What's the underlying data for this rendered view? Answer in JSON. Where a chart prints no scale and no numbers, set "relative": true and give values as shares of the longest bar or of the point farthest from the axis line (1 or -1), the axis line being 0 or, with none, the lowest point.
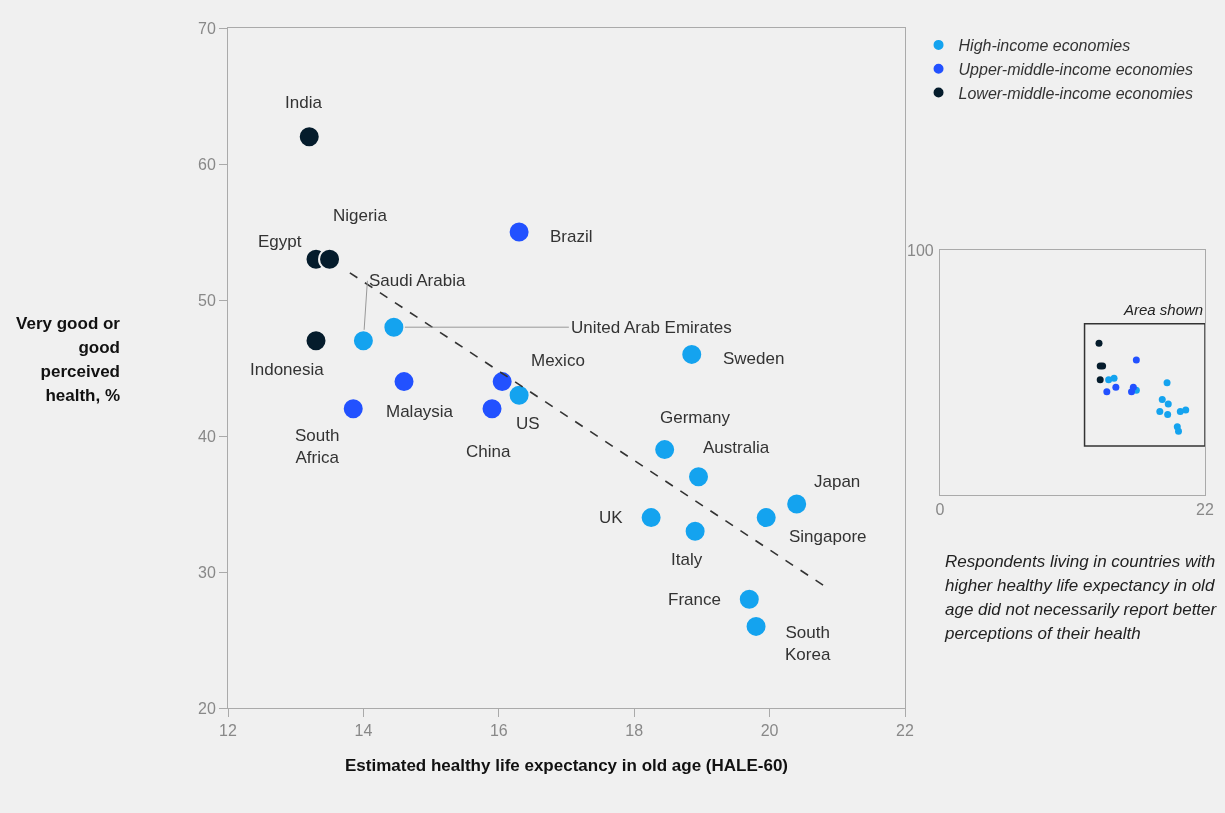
{
  "chart_data": [
    {
      "type": "scatter",
      "xlabel": "Estimated healthy life expectancy in old age (HALE-60)",
      "ylabel": "Very good or good perceived health, %",
      "xlim": [
        12,
        22
      ],
      "ylim": [
        20,
        70
      ],
      "xticks": [
        12,
        14,
        16,
        18,
        20,
        22
      ],
      "yticks": [
        20,
        30,
        40,
        50,
        60,
        70
      ],
      "legend": "top right",
      "series": [
        {
          "name": "High-income economies",
          "color": "#14a3ef",
          "marker": "circle",
          "x": [
            14.0,
            14.45,
            16.3,
            18.85,
            18.45,
            18.95,
            18.25,
            18.9,
            19.95,
            20.4,
            19.7,
            19.8
          ],
          "values": [
            47,
            48,
            43,
            46,
            39,
            37,
            34,
            33,
            34,
            35,
            28,
            26
          ]
        },
        {
          "name": "Upper-middle-income economies",
          "color": "#2251ff",
          "marker": "circle",
          "x": [
            14.6,
            13.85,
            16.3,
            16.05,
            15.9
          ],
          "values": [
            44,
            42,
            55,
            44,
            42
          ]
        },
        {
          "name": "Lower-middle-income economies",
          "color": "#051c2c",
          "marker": "circle",
          "x": [
            13.2,
            13.3,
            13.5,
            13.3
          ],
          "values": [
            62,
            53,
            53,
            47
          ]
        },
        {
          "type": "line",
          "color": "#333333",
          "line_style": "dashed",
          "marker": "none",
          "x": [
            13.8,
            20.8
          ],
          "values": [
            52,
            29
          ]
        }
      ],
      "annotations": [
        {
          "text": "India",
          "x": 13.2,
          "y": 62
        },
        {
          "text": "Egypt",
          "x": 13.3,
          "y": 53
        },
        {
          "text": "Nigeria",
          "x": 13.5,
          "y": 53
        },
        {
          "text": "Saudi Arabia",
          "x": 14.0,
          "y": 47
        },
        {
          "text": "Indonesia",
          "x": 13.3,
          "y": 47
        },
        {
          "text": "United Arab Emirates",
          "x": 14.45,
          "y": 48
        },
        {
          "text": "Malaysia",
          "x": 14.6,
          "y": 44
        },
        {
          "text": "South Africa",
          "x": 13.85,
          "y": 42
        },
        {
          "text": "Brazil",
          "x": 16.3,
          "y": 55
        },
        {
          "text": "Mexico",
          "x": 16.05,
          "y": 44
        },
        {
          "text": "US",
          "x": 16.3,
          "y": 43
        },
        {
          "text": "China",
          "x": 15.9,
          "y": 42
        },
        {
          "text": "Sweden",
          "x": 18.85,
          "y": 46
        },
        {
          "text": "Germany",
          "x": 18.45,
          "y": 39
        },
        {
          "text": "Australia",
          "x": 18.95,
          "y": 37
        },
        {
          "text": "UK",
          "x": 18.25,
          "y": 34
        },
        {
          "text": "Italy",
          "x": 18.9,
          "y": 33
        },
        {
          "text": "Singapore",
          "x": 19.95,
          "y": 34
        },
        {
          "text": "Japan",
          "x": 20.4,
          "y": 35
        },
        {
          "text": "France",
          "x": 19.7,
          "y": 28
        },
        {
          "text": "South Korea",
          "x": 19.8,
          "y": 26
        }
      ]
    },
    {
      "type": "scatter",
      "relative": true,
      "xlim": [
        0,
        22
      ],
      "xticks": [
        0,
        22
      ],
      "marker": "circle",
      "series": [
        {
          "color": "#14a3ef",
          "x": [
            14.0,
            14.45,
            16.3,
            18.85,
            18.45,
            18.95,
            18.25,
            18.9,
            19.95,
            20.4,
            19.7,
            19.8
          ],
          "values": [
            0.76,
            0.77,
            0.69,
            0.74,
            0.63,
            0.6,
            0.55,
            0.53,
            0.55,
            0.56,
            0.45,
            0.42
          ]
        },
        {
          "color": "#2251ff",
          "x": [
            14.6,
            13.85,
            16.3,
            16.05,
            15.9
          ],
          "values": [
            0.71,
            0.68,
            0.89,
            0.71,
            0.68
          ]
        },
        {
          "color": "#051c2c",
          "x": [
            13.2,
            13.3,
            13.5,
            13.3
          ],
          "values": [
            1,
            0.85,
            0.85,
            0.76
          ]
        }
      ],
      "annotations": [
        "100",
        "Area shown",
        "Respondents living in countries with higher healthy life expectancy in old age did not necessarily report better perceptions of their health"
      ]
    }
  ]
}
